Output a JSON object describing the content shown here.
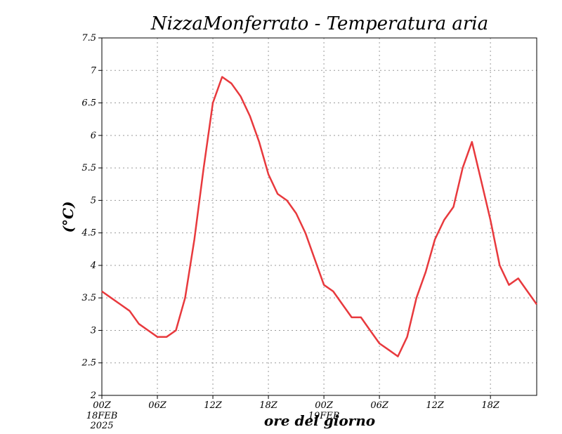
{
  "chart_data": {
    "type": "line",
    "title": "NizzaMonferrato - Temperatura aria",
    "xlabel": "ore del giorno",
    "ylabel": "(°C)",
    "ylim": [
      2,
      7.5
    ],
    "yticks": [
      "2",
      "2.5",
      "3",
      "3.5",
      "4",
      "4.5",
      "5",
      "5.5",
      "6",
      "6.5",
      "7",
      "7.5"
    ],
    "x_unit": "hour",
    "xlim": [
      0,
      47
    ],
    "xticks": [
      {
        "hour": 0,
        "label": "00Z"
      },
      {
        "hour": 6,
        "label": "06Z"
      },
      {
        "hour": 12,
        "label": "12Z"
      },
      {
        "hour": 18,
        "label": "18Z"
      },
      {
        "hour": 24,
        "label": "00Z"
      },
      {
        "hour": 30,
        "label": "06Z"
      },
      {
        "hour": 36,
        "label": "12Z"
      },
      {
        "hour": 42,
        "label": "18Z"
      }
    ],
    "date_labels": [
      {
        "hour": 0,
        "lines": [
          "18FEB",
          "2025"
        ]
      },
      {
        "hour": 24,
        "lines": [
          "19FEB"
        ]
      }
    ],
    "grid": true,
    "series": [
      {
        "color": "#e8393d",
        "x": [
          0,
          1,
          2,
          3,
          4,
          5,
          6,
          7,
          8,
          9,
          10,
          11,
          12,
          13,
          14,
          15,
          16,
          17,
          18,
          19,
          20,
          21,
          22,
          23,
          24,
          25,
          26,
          27,
          28,
          29,
          30,
          31,
          32,
          33,
          34,
          35,
          36,
          37,
          38,
          39,
          40,
          41,
          42,
          43,
          44,
          45,
          46,
          47
        ],
        "values": [
          3.6,
          3.5,
          3.4,
          3.3,
          3.1,
          3.0,
          2.9,
          2.9,
          3.0,
          3.5,
          4.4,
          5.5,
          6.5,
          6.9,
          6.8,
          6.6,
          6.3,
          5.9,
          5.4,
          5.1,
          5.0,
          4.8,
          4.5,
          4.1,
          3.7,
          3.6,
          3.4,
          3.2,
          3.2,
          3.0,
          2.8,
          2.7,
          2.6,
          2.9,
          3.5,
          3.9,
          4.4,
          4.7,
          4.9,
          5.5,
          5.9,
          5.3,
          4.7,
          4.0,
          3.7,
          3.8,
          3.6,
          3.4
        ]
      }
    ]
  }
}
